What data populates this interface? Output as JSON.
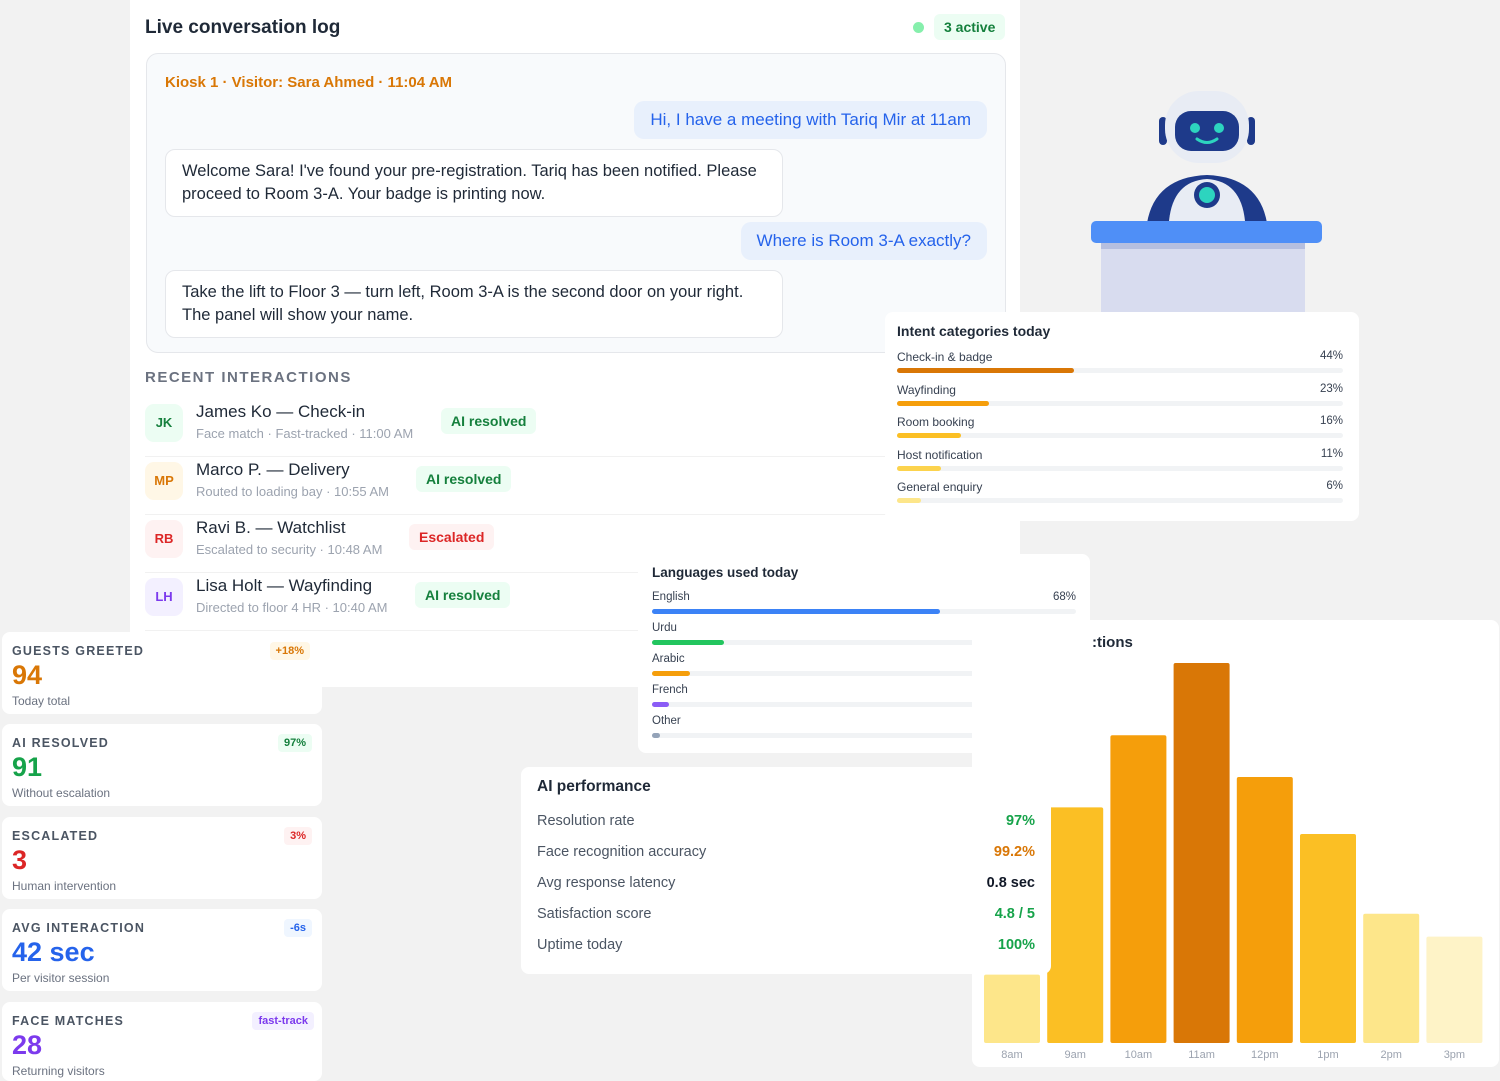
{
  "conversation": {
    "title": "Live conversation log",
    "active_badge": "3 active",
    "header": "Kiosk 1 · Visitor: Sara Ahmed · 11:04 AM",
    "messages": [
      {
        "from": "user",
        "text": "Hi, I have a meeting with Tariq Mir at 11am"
      },
      {
        "from": "bot",
        "text": "Welcome Sara! I've found your pre-registration. Tariq has been notified. Please proceed to Room 3-A. Your badge is printing now."
      },
      {
        "from": "user",
        "text": "Where is Room 3-A exactly?"
      },
      {
        "from": "bot",
        "text": "Take the lift to Floor 3 — turn left, Room 3-A is the second door on your right. The panel will show your name."
      }
    ]
  },
  "recent": {
    "label": "RECENT INTERACTIONS",
    "items": [
      {
        "initials": "JK",
        "name": "James Ko — Check-in",
        "detail": "Face match · Fast-tracked · 11:00 AM",
        "status": "AI resolved",
        "tone": "green",
        "avatar_bg": "#ecfdf3",
        "avatar_fg": "#15803d"
      },
      {
        "initials": "MP",
        "name": "Marco P. — Delivery",
        "detail": "Routed to loading bay · 10:55 AM",
        "status": "AI resolved",
        "tone": "green",
        "avatar_bg": "#fff7e6",
        "avatar_fg": "#d97706"
      },
      {
        "initials": "RB",
        "name": "Ravi B. — Watchlist",
        "detail": "Escalated to security · 10:48 AM",
        "status": "Escalated",
        "tone": "red",
        "avatar_bg": "#fef2f2",
        "avatar_fg": "#dc2626"
      },
      {
        "initials": "LH",
        "name": "Lisa Holt — Wayfinding",
        "detail": "Directed to floor 4 HR · 10:40 AM",
        "status": "AI resolved",
        "tone": "green",
        "avatar_bg": "#f3f0ff",
        "avatar_fg": "#7c3aed"
      }
    ]
  },
  "intents": {
    "title": "Intent categories today",
    "items": [
      {
        "label": "Check-in & badge",
        "pct_text": "44%",
        "value": 44,
        "color": "#d97706"
      },
      {
        "label": "Wayfinding",
        "pct_text": "23%",
        "value": 23,
        "color": "#f59e0b"
      },
      {
        "label": "Room booking",
        "pct_text": "16%",
        "value": 16,
        "color": "#fbbf24"
      },
      {
        "label": "Host notification",
        "pct_text": "11%",
        "value": 11,
        "color": "#fcd34d"
      },
      {
        "label": "General enquiry",
        "pct_text": "6%",
        "value": 6,
        "color": "#fde68a"
      }
    ]
  },
  "languages": {
    "title": "Languages used today",
    "items": [
      {
        "label": "English",
        "pct_text": "68%",
        "value": 68,
        "color": "#3b82f6"
      },
      {
        "label": "Urdu",
        "pct_text": "17%",
        "value": 17,
        "color": "#22c55e"
      },
      {
        "label": "Arabic",
        "pct_text": "9%",
        "value": 9,
        "color": "#f59e0b"
      },
      {
        "label": "French",
        "pct_text": "4%",
        "value": 4,
        "color": "#8b5cf6"
      },
      {
        "label": "Other",
        "pct_text": "2%",
        "value": 2,
        "color": "#94a3b8"
      }
    ]
  },
  "chart": {
    "title_visible": ":tions"
  },
  "chart_data": {
    "type": "bar",
    "title": "",
    "categories": [
      "8am",
      "9am",
      "10am",
      "11am",
      "12pm",
      "1pm",
      "2pm",
      "3pm"
    ],
    "values": [
      18,
      62,
      81,
      100,
      70,
      55,
      34,
      28
    ],
    "ylim": [
      0,
      100
    ],
    "grid": false,
    "colors": [
      "#fde68a",
      "#fbbf24",
      "#f59e0b",
      "#d97706",
      "#f59e0b",
      "#fbbf24",
      "#fde68a",
      "#fef3c7"
    ]
  },
  "performance": {
    "title": "AI performance",
    "rows": [
      {
        "label": "Resolution rate",
        "value": "97%",
        "color": "#16a34a"
      },
      {
        "label": "Face recognition accuracy",
        "value": "99.2%",
        "color": "#d97706"
      },
      {
        "label": "Avg response latency",
        "value": "0.8 sec",
        "color": "#111827"
      },
      {
        "label": "Satisfaction score",
        "value": "4.8 / 5",
        "color": "#16a34a"
      },
      {
        "label": "Uptime today",
        "value": "100%",
        "color": "#16a34a"
      }
    ]
  },
  "stats": [
    {
      "label": "GUESTS GREETED",
      "value": "94",
      "sub": "Today total",
      "badge": "+18%",
      "value_color": "#d97706",
      "badge_bg": "#fff7e6",
      "badge_fg": "#d97706"
    },
    {
      "label": "AI RESOLVED",
      "value": "91",
      "sub": "Without escalation",
      "badge": "97%",
      "value_color": "#16a34a",
      "badge_bg": "#ecfdf3",
      "badge_fg": "#15803d"
    },
    {
      "label": "ESCALATED",
      "value": "3",
      "sub": "Human intervention",
      "badge": "3%",
      "value_color": "#dc2626",
      "badge_bg": "#fef2f2",
      "badge_fg": "#dc2626"
    },
    {
      "label": "AVG INTERACTION",
      "value": "42 sec",
      "sub": "Per visitor session",
      "badge": "-6s",
      "value_color": "#2563eb",
      "badge_bg": "#eff6ff",
      "badge_fg": "#2563eb"
    },
    {
      "label": "FACE MATCHES",
      "value": "28",
      "sub": "Returning visitors",
      "badge": "fast-track",
      "value_color": "#7c3aed",
      "badge_bg": "#f3f0ff",
      "badge_fg": "#7c3aed"
    }
  ]
}
